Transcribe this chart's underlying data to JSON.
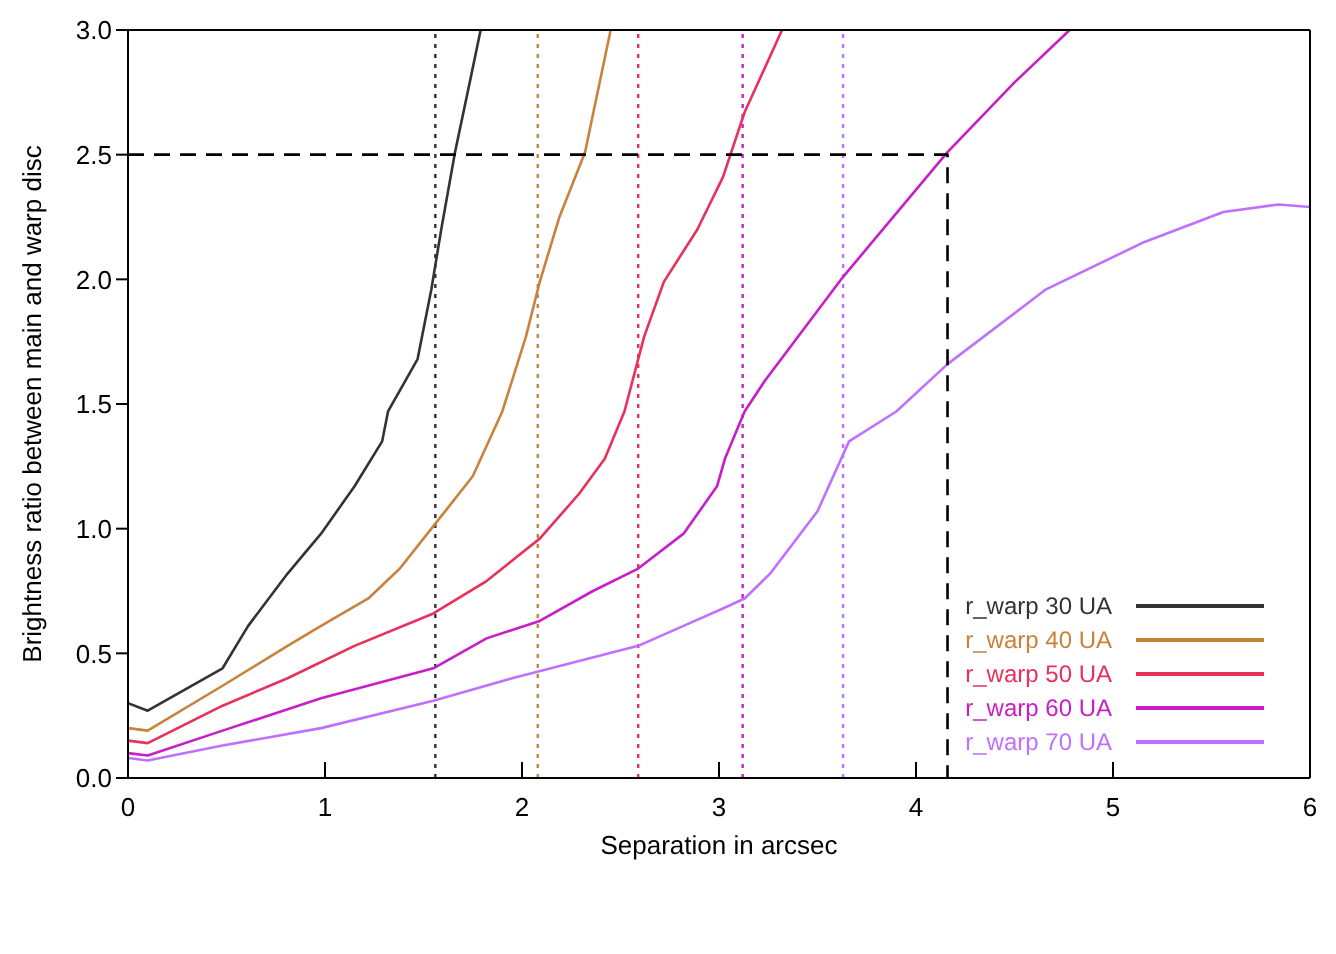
{
  "chart_data": {
    "type": "line",
    "xlabel": "Separation in arcsec",
    "ylabel": "Brightness ratio between main and warp disc",
    "xlim": [
      0,
      6
    ],
    "xticks": [
      0,
      1,
      2,
      3,
      4,
      5,
      6
    ],
    "ylim": [
      0,
      3
    ],
    "yticks": [
      {
        "value": 0,
        "label": "0.0"
      },
      {
        "value": 0.5,
        "label": "0.5"
      },
      {
        "value": 1,
        "label": "1.0"
      },
      {
        "value": 1.5,
        "label": "1.5"
      },
      {
        "value": 2,
        "label": "2.0"
      },
      {
        "value": 2.5,
        "label": "2.5"
      },
      {
        "value": 3,
        "label": "3.0"
      }
    ],
    "legend": "bottom right",
    "marker": "none",
    "line_style": "solid",
    "series": [
      {
        "name": "r_warp 30 UA",
        "color": "#333333",
        "x": [
          0,
          0.1,
          0.48,
          0.61,
          0.81,
          0.98,
          1.15,
          1.29,
          1.32,
          1.47,
          1.54,
          1.59,
          1.66,
          1.74,
          1.79
        ],
        "values": [
          0.3,
          0.27,
          0.44,
          0.61,
          0.82,
          0.98,
          1.17,
          1.35,
          1.47,
          1.68,
          1.96,
          2.2,
          2.51,
          2.81,
          3.0
        ]
      },
      {
        "name": "r_warp 40 UA",
        "color": "#c8823c",
        "x": [
          0,
          0.1,
          0.48,
          0.81,
          0.98,
          1.22,
          1.38,
          1.55,
          1.75,
          1.9,
          2.02,
          2.09,
          2.19,
          2.32,
          2.45
        ],
        "values": [
          0.2,
          0.19,
          0.37,
          0.53,
          0.61,
          0.72,
          0.84,
          1.01,
          1.21,
          1.47,
          1.77,
          1.99,
          2.25,
          2.51,
          3.0
        ]
      },
      {
        "name": "r_warp 50 UA",
        "color": "#e8305a",
        "x": [
          0,
          0.1,
          0.48,
          0.81,
          1.15,
          1.55,
          1.82,
          2.09,
          2.29,
          2.42,
          2.52,
          2.62,
          2.72,
          2.89,
          3.02,
          3.13,
          3.32
        ],
        "values": [
          0.15,
          0.14,
          0.29,
          0.4,
          0.53,
          0.66,
          0.79,
          0.96,
          1.14,
          1.28,
          1.47,
          1.77,
          1.99,
          2.2,
          2.41,
          2.67,
          3.0
        ]
      },
      {
        "name": "r_warp 60 UA",
        "color": "#c81ec8",
        "x": [
          0,
          0.1,
          0.48,
          0.98,
          1.55,
          1.82,
          2.09,
          2.36,
          2.59,
          2.82,
          2.99,
          3.03,
          3.13,
          3.23,
          3.63,
          4.16,
          4.5,
          4.78
        ],
        "values": [
          0.1,
          0.09,
          0.19,
          0.32,
          0.44,
          0.56,
          0.63,
          0.75,
          0.84,
          0.98,
          1.17,
          1.28,
          1.47,
          1.59,
          2.01,
          2.51,
          2.79,
          3.0
        ]
      },
      {
        "name": "r_warp 70 UA",
        "color": "#c070ff",
        "x": [
          0,
          0.1,
          0.48,
          0.98,
          1.55,
          1.95,
          2.59,
          2.82,
          3.02,
          3.13,
          3.26,
          3.5,
          3.66,
          3.9,
          4.16,
          4.66,
          5.16,
          5.56,
          5.84,
          6.0
        ],
        "values": [
          0.08,
          0.07,
          0.13,
          0.2,
          0.31,
          0.4,
          0.53,
          0.61,
          0.68,
          0.72,
          0.82,
          1.07,
          1.35,
          1.47,
          1.66,
          1.96,
          2.15,
          2.27,
          2.3,
          2.29
        ]
      },
      {
        "color": "#000000",
        "line_style": "dashed",
        "x": [
          0,
          4.16,
          4.16
        ],
        "values": [
          2.5,
          2.5,
          0
        ]
      }
    ],
    "ref_lines": [
      {
        "axis": "x",
        "value": 1.56,
        "color": "#333333",
        "line_style": "dotted"
      },
      {
        "axis": "x",
        "value": 2.08,
        "color": "#c8823c",
        "line_style": "dotted"
      },
      {
        "axis": "x",
        "value": 2.59,
        "color": "#e8305a",
        "line_style": "dotted"
      },
      {
        "axis": "x",
        "value": 3.12,
        "color": "#c81ec8",
        "line_style": "dotted"
      },
      {
        "axis": "x",
        "value": 3.63,
        "color": "#c070ff",
        "line_style": "dotted"
      }
    ]
  }
}
